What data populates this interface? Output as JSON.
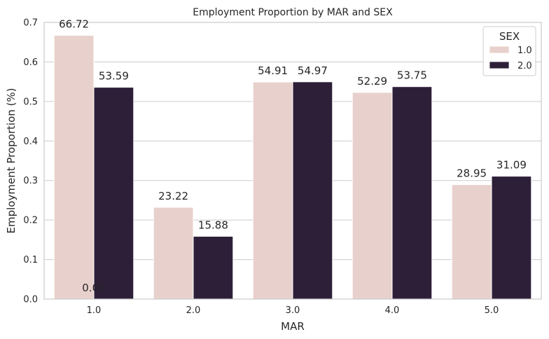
{
  "chart_data": {
    "type": "bar",
    "title": "Employment Proportion by MAR and SEX",
    "xlabel": "MAR",
    "ylabel": "Employment Proportion (%)",
    "categories": [
      "1.0",
      "2.0",
      "3.0",
      "4.0",
      "5.0"
    ],
    "ylim": [
      0,
      0.7
    ],
    "yticks": [
      "0.0",
      "0.1",
      "0.2",
      "0.3",
      "0.4",
      "0.5",
      "0.6",
      "0.7"
    ],
    "grid": true,
    "legend": {
      "title": "SEX",
      "placement": "top-right"
    },
    "series": [
      {
        "name": "1.0",
        "color": "#e8d1cc",
        "values": [
          0.6672,
          0.2322,
          0.5491,
          0.5229,
          0.2895
        ],
        "labels": [
          "66.72",
          "23.22",
          "54.91",
          "52.29",
          "28.95"
        ]
      },
      {
        "name": "2.0",
        "color": "#2e1f39",
        "values": [
          0.5359,
          0.1588,
          0.5497,
          0.5375,
          0.3109
        ],
        "labels": [
          "53.59",
          "15.88",
          "54.97",
          "53.75",
          "31.09"
        ]
      }
    ],
    "annotations": [
      "0.00"
    ]
  }
}
